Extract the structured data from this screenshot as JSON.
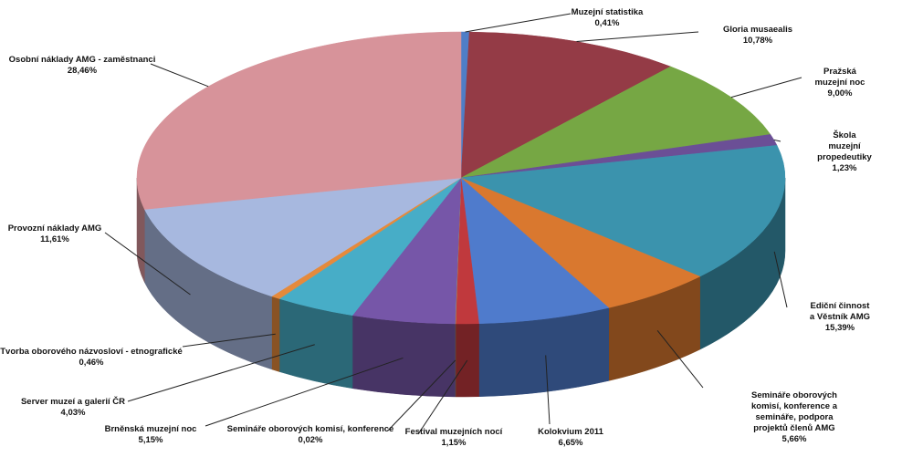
{
  "chart_data": {
    "type": "pie",
    "categories": [
      "Muzejní statistika",
      "Gloria musaealis",
      "Pražská muzejní noc",
      "Škola muzejní propedeutiky",
      "Ediční činnost a Věstník AMG",
      "Semináře oborových komisí, konference a semináře, podpora projektů členů AMG",
      "Kolokvium 2011",
      "Festival muzejních nocí",
      "Semináře oborových komisí, konference",
      "Brněnská muzejní noc",
      "Server muzeí a galerií ČR",
      "Tvorba oborového názvosloví - etnografické",
      "Provozní náklady AMG",
      "Osobní náklady AMG - zaměstnanci"
    ],
    "values": [
      0.41,
      10.78,
      9.0,
      1.23,
      15.39,
      5.66,
      6.65,
      1.15,
      0.02,
      5.15,
      4.03,
      0.46,
      11.61,
      28.46
    ],
    "value_labels": [
      "0,41%",
      "10,78%",
      "9,00%",
      "1,23%",
      "15,39%",
      "5,66%",
      "6,65%",
      "1,15%",
      "0,02%",
      "5,15%",
      "4,03%",
      "0,46%",
      "11,61%",
      "28,46%"
    ],
    "colors": [
      "#4f7ec7",
      "#943b46",
      "#76a744",
      "#6b4f96",
      "#3b93ad",
      "#d9782f",
      "#4f7bcc",
      "#c0393d",
      "#9bb957",
      "#7656a8",
      "#47adc7",
      "#e58a3c",
      "#a7b8df",
      "#d7939a"
    ]
  }
}
